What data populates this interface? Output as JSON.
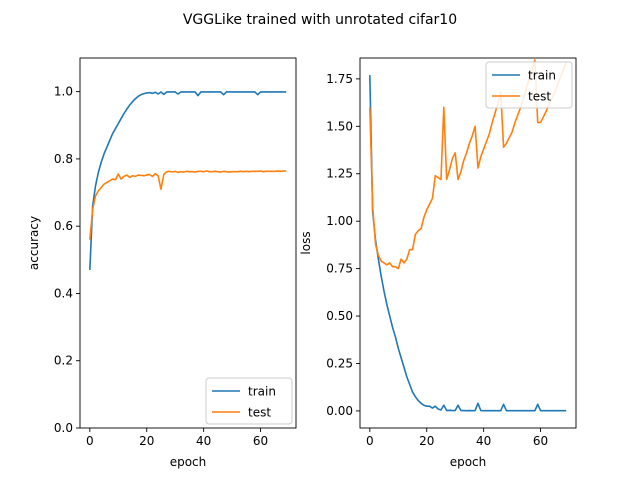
{
  "figure": {
    "title": "VGGLike trained with unrotated cifar10"
  },
  "chart_data": [
    {
      "type": "line",
      "xlabel": "epoch",
      "ylabel": "accuracy",
      "xlim": [
        -3.45,
        72.45
      ],
      "ylim": [
        0,
        1.1
      ],
      "xticks": [
        0,
        20,
        40,
        60
      ],
      "xtick_labels": [
        "0",
        "20",
        "40",
        "60"
      ],
      "yticks": [
        0,
        0.2,
        0.4,
        0.6,
        0.8,
        1.0
      ],
      "ytick_labels": [
        "0.0",
        "0.2",
        "0.4",
        "0.6",
        "0.8",
        "1.0"
      ],
      "legend_position": "lower-right",
      "grid": false,
      "series": [
        {
          "name": "train",
          "color": "#1f77b4",
          "x": [
            0,
            1,
            2,
            3,
            4,
            5,
            6,
            7,
            8,
            9,
            10,
            11,
            12,
            13,
            14,
            15,
            16,
            17,
            18,
            19,
            20,
            21,
            22,
            23,
            24,
            25,
            26,
            27,
            28,
            29,
            30,
            31,
            32,
            33,
            34,
            35,
            36,
            37,
            38,
            39,
            40,
            41,
            42,
            43,
            44,
            45,
            46,
            47,
            48,
            49,
            50,
            51,
            52,
            53,
            54,
            55,
            56,
            57,
            58,
            59,
            60,
            61,
            62,
            63,
            64,
            65,
            66,
            67,
            68,
            69
          ],
          "y": [
            0.47,
            0.66,
            0.72,
            0.76,
            0.79,
            0.815,
            0.835,
            0.855,
            0.875,
            0.89,
            0.905,
            0.92,
            0.935,
            0.948,
            0.96,
            0.97,
            0.979,
            0.986,
            0.991,
            0.994,
            0.996,
            0.997,
            0.995,
            0.998,
            0.993,
            0.999,
            0.992,
            0.999,
            0.999,
            0.999,
            0.999,
            0.993,
            0.999,
            0.999,
            0.999,
            0.999,
            0.999,
            0.999,
            0.988,
            0.999,
            0.999,
            0.999,
            0.999,
            0.999,
            0.999,
            0.999,
            0.999,
            0.991,
            0.999,
            0.999,
            0.999,
            0.999,
            0.999,
            0.999,
            0.999,
            0.999,
            0.999,
            0.999,
            0.999,
            0.991,
            0.999,
            0.999,
            0.999,
            0.999,
            0.999,
            0.999,
            0.999,
            0.999,
            0.999,
            0.999
          ]
        },
        {
          "name": "test",
          "color": "#ff7f0e",
          "x": [
            0,
            1,
            2,
            3,
            4,
            5,
            6,
            7,
            8,
            9,
            10,
            11,
            12,
            13,
            14,
            15,
            16,
            17,
            18,
            19,
            20,
            21,
            22,
            23,
            24,
            25,
            26,
            27,
            28,
            29,
            30,
            31,
            32,
            33,
            34,
            35,
            36,
            37,
            38,
            39,
            40,
            41,
            42,
            43,
            44,
            45,
            46,
            47,
            48,
            49,
            50,
            51,
            52,
            53,
            54,
            55,
            56,
            57,
            58,
            59,
            60,
            61,
            62,
            63,
            64,
            65,
            66,
            67,
            68,
            69
          ],
          "y": [
            0.56,
            0.65,
            0.69,
            0.705,
            0.715,
            0.725,
            0.73,
            0.735,
            0.74,
            0.738,
            0.755,
            0.74,
            0.748,
            0.752,
            0.745,
            0.75,
            0.748,
            0.752,
            0.751,
            0.75,
            0.752,
            0.754,
            0.748,
            0.756,
            0.75,
            0.71,
            0.754,
            0.762,
            0.763,
            0.761,
            0.763,
            0.76,
            0.762,
            0.761,
            0.763,
            0.762,
            0.762,
            0.761,
            0.763,
            0.763,
            0.762,
            0.764,
            0.762,
            0.762,
            0.763,
            0.762,
            0.761,
            0.763,
            0.762,
            0.761,
            0.762,
            0.762,
            0.762,
            0.763,
            0.762,
            0.763,
            0.762,
            0.763,
            0.763,
            0.763,
            0.764,
            0.762,
            0.763,
            0.763,
            0.763,
            0.763,
            0.764,
            0.763,
            0.764,
            0.764
          ]
        }
      ]
    },
    {
      "type": "line",
      "xlabel": "epoch",
      "ylabel": "loss",
      "xlim": [
        -3.45,
        72.45
      ],
      "ylim": [
        -0.09,
        1.86
      ],
      "xticks": [
        0,
        20,
        40,
        60
      ],
      "xtick_labels": [
        "0",
        "20",
        "40",
        "60"
      ],
      "yticks": [
        0,
        0.25,
        0.5,
        0.75,
        1.0,
        1.25,
        1.5,
        1.75
      ],
      "ytick_labels": [
        "0.00",
        "0.25",
        "0.50",
        "0.75",
        "1.00",
        "1.25",
        "1.50",
        "1.75"
      ],
      "legend_position": "upper-right",
      "grid": false,
      "series": [
        {
          "name": "train",
          "color": "#1f77b4",
          "x": [
            0,
            1,
            2,
            3,
            4,
            5,
            6,
            7,
            8,
            9,
            10,
            11,
            12,
            13,
            14,
            15,
            16,
            17,
            18,
            19,
            20,
            21,
            22,
            23,
            24,
            25,
            26,
            27,
            28,
            29,
            30,
            31,
            32,
            33,
            34,
            35,
            36,
            37,
            38,
            39,
            40,
            41,
            42,
            43,
            44,
            45,
            46,
            47,
            48,
            49,
            50,
            51,
            52,
            53,
            54,
            55,
            56,
            57,
            58,
            59,
            60,
            61,
            62,
            63,
            64,
            65,
            66,
            67,
            68,
            69
          ],
          "y": [
            1.77,
            1.05,
            0.9,
            0.8,
            0.71,
            0.63,
            0.56,
            0.5,
            0.44,
            0.39,
            0.33,
            0.28,
            0.23,
            0.18,
            0.14,
            0.1,
            0.075,
            0.055,
            0.04,
            0.03,
            0.025,
            0.025,
            0.015,
            0.025,
            0.01,
            0.005,
            0.03,
            0.002,
            0.003,
            0.002,
            0.002,
            0.03,
            0.002,
            0.002,
            0.001,
            0.002,
            0.001,
            0.002,
            0.04,
            0.002,
            0.001,
            0.001,
            0.001,
            0.001,
            0.001,
            0.001,
            0.001,
            0.035,
            0.001,
            0.001,
            0.001,
            0.001,
            0.001,
            0.001,
            0.001,
            0.001,
            0.001,
            0.001,
            0.001,
            0.035,
            0.001,
            0.001,
            0.001,
            0.001,
            0.001,
            0.001,
            0.001,
            0.001,
            0.001,
            0.001
          ]
        },
        {
          "name": "test",
          "color": "#ff7f0e",
          "x": [
            0,
            1,
            2,
            3,
            4,
            5,
            6,
            7,
            8,
            9,
            10,
            11,
            12,
            13,
            14,
            15,
            16,
            17,
            18,
            19,
            20,
            21,
            22,
            23,
            24,
            25,
            26,
            27,
            28,
            29,
            30,
            31,
            32,
            33,
            34,
            35,
            36,
            37,
            38,
            39,
            40,
            41,
            42,
            43,
            44,
            45,
            46,
            47,
            48,
            49,
            50,
            51,
            52,
            53,
            54,
            55,
            56,
            57,
            58,
            59,
            60,
            61,
            62,
            63,
            64,
            65,
            66,
            67,
            68,
            69
          ],
          "y": [
            1.6,
            1.08,
            0.88,
            0.82,
            0.79,
            0.78,
            0.77,
            0.78,
            0.76,
            0.76,
            0.75,
            0.8,
            0.78,
            0.8,
            0.85,
            0.85,
            0.93,
            0.95,
            0.96,
            1.02,
            1.06,
            1.09,
            1.12,
            1.24,
            1.23,
            1.22,
            1.6,
            1.22,
            1.27,
            1.33,
            1.36,
            1.22,
            1.26,
            1.32,
            1.36,
            1.41,
            1.45,
            1.5,
            1.28,
            1.34,
            1.38,
            1.42,
            1.46,
            1.52,
            1.57,
            1.62,
            1.68,
            1.39,
            1.41,
            1.44,
            1.47,
            1.52,
            1.56,
            1.6,
            1.65,
            1.7,
            1.75,
            1.8,
            1.85,
            1.52,
            1.52,
            1.55,
            1.58,
            1.62,
            1.65,
            1.68,
            1.72,
            1.76,
            1.8,
            1.84
          ]
        }
      ]
    }
  ]
}
